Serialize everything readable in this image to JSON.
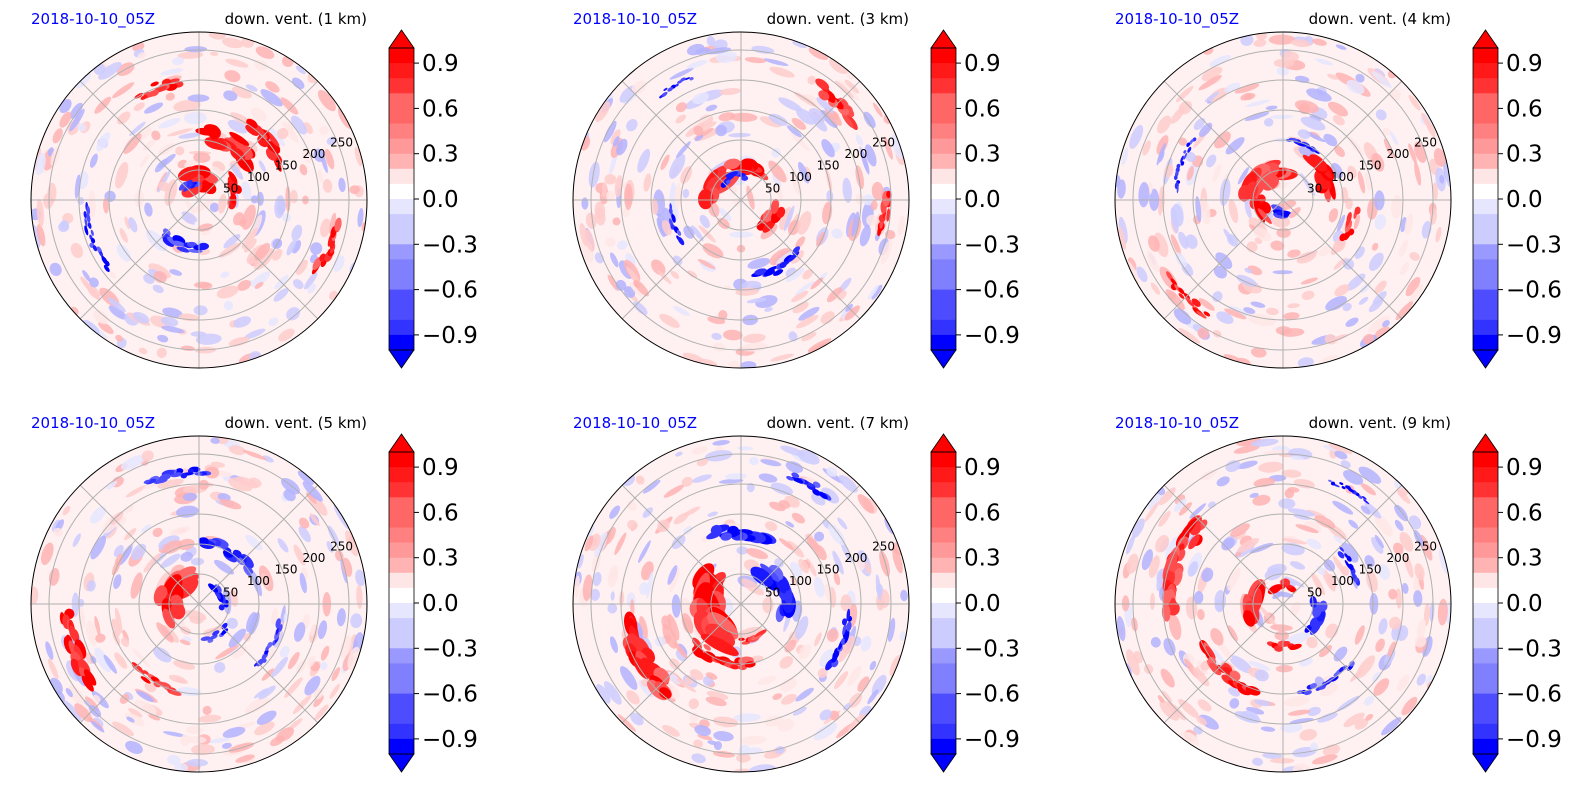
{
  "figure": {
    "colors": {
      "positive": "#ff0000",
      "negative": "#0000ff",
      "date_label": "#0000ff",
      "grid": "#b0b0b0"
    }
  },
  "chart_data": [
    {
      "type": "heatmap",
      "projection": "polar",
      "date": "2018-10-10_05Z",
      "title": "down. vent. (1 km)",
      "radial_ticks": [
        50,
        100,
        150,
        200,
        250
      ],
      "colorbar": {
        "min": -1.0,
        "max": 1.0,
        "ticks": [
          "0.9",
          "0.6",
          "0.3",
          "0.0",
          "−0.3",
          "−0.6",
          "−0.9"
        ],
        "extend": "both"
      },
      "features": [
        {
          "sign": 1,
          "angle": 90,
          "r": 35,
          "len": 40,
          "width": 22
        },
        {
          "sign": 1,
          "angle": 60,
          "r": 110,
          "len": 90,
          "width": 20
        },
        {
          "sign": 1,
          "angle": 40,
          "r": 150,
          "len": 80,
          "width": 16
        },
        {
          "sign": 1,
          "angle": 110,
          "r": 200,
          "len": 70,
          "width": 12
        },
        {
          "sign": 1,
          "angle": -20,
          "r": 230,
          "len": 80,
          "width": 12
        },
        {
          "sign": 1,
          "angle": 15,
          "r": 60,
          "len": 40,
          "width": 14
        },
        {
          "sign": -1,
          "angle": 250,
          "r": 80,
          "len": 70,
          "width": 12
        },
        {
          "sign": -1,
          "angle": 200,
          "r": 190,
          "len": 110,
          "width": 8
        },
        {
          "sign": -1,
          "angle": 120,
          "r": 30,
          "len": 20,
          "width": 10
        }
      ]
    },
    {
      "type": "heatmap",
      "projection": "polar",
      "date": "2018-10-10_05Z",
      "title": "down. vent. (3 km)",
      "radial_ticks": [
        50,
        100,
        150,
        200,
        250
      ],
      "colorbar": {
        "min": -1.0,
        "max": 1.0,
        "ticks": [
          "0.9",
          "0.6",
          "0.3",
          "0.0",
          "−0.3",
          "−0.6",
          "−0.9"
        ],
        "extend": "both"
      },
      "features": [
        {
          "sign": 1,
          "angle": 150,
          "r": 50,
          "len": 50,
          "width": 24
        },
        {
          "sign": 1,
          "angle": 80,
          "r": 60,
          "len": 50,
          "width": 20
        },
        {
          "sign": 1,
          "angle": -30,
          "r": 60,
          "len": 40,
          "width": 16
        },
        {
          "sign": 1,
          "angle": 45,
          "r": 230,
          "len": 80,
          "width": 14
        },
        {
          "sign": 1,
          "angle": -5,
          "r": 240,
          "len": 60,
          "width": 12
        },
        {
          "sign": -1,
          "angle": 110,
          "r": 40,
          "len": 40,
          "width": 10
        },
        {
          "sign": -1,
          "angle": -60,
          "r": 130,
          "len": 80,
          "width": 10
        },
        {
          "sign": -1,
          "angle": 200,
          "r": 120,
          "len": 60,
          "width": 8
        },
        {
          "sign": -1,
          "angle": 120,
          "r": 220,
          "len": 60,
          "width": 6
        }
      ]
    },
    {
      "type": "heatmap",
      "projection": "polar",
      "date": "2018-10-10_05Z",
      "title": "down. vent. (4 km)",
      "radial_ticks": [
        30,
        100,
        150,
        200,
        250
      ],
      "colorbar": {
        "min": -1.0,
        "max": 1.0,
        "ticks": [
          "0.9",
          "0.6",
          "0.3",
          "0.0",
          "−0.3",
          "−0.6",
          "−0.9"
        ],
        "extend": "both"
      },
      "features": [
        {
          "sign": 1,
          "angle": 130,
          "r": 50,
          "len": 70,
          "width": 26
        },
        {
          "sign": 1,
          "angle": 30,
          "r": 80,
          "len": 60,
          "width": 20
        },
        {
          "sign": 1,
          "angle": 200,
          "r": 40,
          "len": 30,
          "width": 16
        },
        {
          "sign": 1,
          "angle": 225,
          "r": 230,
          "len": 90,
          "width": 10
        },
        {
          "sign": 1,
          "angle": -20,
          "r": 120,
          "len": 50,
          "width": 10
        },
        {
          "sign": -1,
          "angle": 260,
          "r": 20,
          "len": 20,
          "width": 12
        },
        {
          "sign": -1,
          "angle": 70,
          "r": 100,
          "len": 50,
          "width": 8
        },
        {
          "sign": -1,
          "angle": 160,
          "r": 180,
          "len": 90,
          "width": 6
        }
      ]
    },
    {
      "type": "heatmap",
      "projection": "polar",
      "date": "2018-10-10_05Z",
      "title": "down. vent. (5 km)",
      "radial_ticks": [
        50,
        100,
        150,
        200,
        250
      ],
      "colorbar": {
        "min": -1.0,
        "max": 1.0,
        "ticks": [
          "0.9",
          "0.6",
          "0.3",
          "0.0",
          "−0.3",
          "−0.6",
          "−0.9"
        ],
        "extend": "both"
      },
      "features": [
        {
          "sign": 1,
          "angle": 160,
          "r": 50,
          "len": 80,
          "width": 26
        },
        {
          "sign": 1,
          "angle": 200,
          "r": 220,
          "len": 120,
          "width": 16
        },
        {
          "sign": 1,
          "angle": 240,
          "r": 150,
          "len": 80,
          "width": 10
        },
        {
          "sign": -1,
          "angle": 60,
          "r": 100,
          "len": 90,
          "width": 14
        },
        {
          "sign": -1,
          "angle": 20,
          "r": 40,
          "len": 40,
          "width": 10
        },
        {
          "sign": -1,
          "angle": 100,
          "r": 220,
          "len": 100,
          "width": 10
        },
        {
          "sign": -1,
          "angle": -30,
          "r": 140,
          "len": 80,
          "width": 8
        },
        {
          "sign": -1,
          "angle": -60,
          "r": 60,
          "len": 40,
          "width": 8
        }
      ]
    },
    {
      "type": "heatmap",
      "projection": "polar",
      "date": "2018-10-10_05Z",
      "title": "down. vent. (7 km)",
      "radial_ticks": [
        50,
        100,
        150,
        200,
        250
      ],
      "colorbar": {
        "min": -1.0,
        "max": 1.0,
        "ticks": [
          "0.9",
          "0.6",
          "0.3",
          "0.0",
          "−0.3",
          "−0.6",
          "−0.9"
        ],
        "extend": "both"
      },
      "features": [
        {
          "sign": 1,
          "angle": 190,
          "r": 60,
          "len": 110,
          "width": 34
        },
        {
          "sign": 1,
          "angle": 210,
          "r": 190,
          "len": 130,
          "width": 22
        },
        {
          "sign": 1,
          "angle": 250,
          "r": 100,
          "len": 100,
          "width": 14
        },
        {
          "sign": 1,
          "angle": -70,
          "r": 60,
          "len": 40,
          "width": 10
        },
        {
          "sign": -1,
          "angle": 90,
          "r": 120,
          "len": 90,
          "width": 18
        },
        {
          "sign": -1,
          "angle": 20,
          "r": 70,
          "len": 80,
          "width": 22
        },
        {
          "sign": -1,
          "angle": -20,
          "r": 180,
          "len": 90,
          "width": 10
        },
        {
          "sign": -1,
          "angle": 60,
          "r": 230,
          "len": 70,
          "width": 10
        }
      ]
    },
    {
      "type": "heatmap",
      "projection": "polar",
      "date": "2018-10-10_05Z",
      "title": "down. vent. (9 km)",
      "radial_ticks": [
        50,
        100,
        150,
        200,
        250
      ],
      "colorbar": {
        "min": -1.0,
        "max": 1.0,
        "ticks": [
          "0.9",
          "0.6",
          "0.3",
          "0.0",
          "−0.3",
          "−0.6",
          "−0.9"
        ],
        "extend": "both"
      },
      "features": [
        {
          "sign": 1,
          "angle": 180,
          "r": 50,
          "len": 40,
          "width": 24
        },
        {
          "sign": 1,
          "angle": 90,
          "r": 30,
          "len": 30,
          "width": 12
        },
        {
          "sign": 1,
          "angle": 160,
          "r": 190,
          "len": 160,
          "width": 20
        },
        {
          "sign": 1,
          "angle": 230,
          "r": 150,
          "len": 110,
          "width": 14
        },
        {
          "sign": 1,
          "angle": 270,
          "r": 70,
          "len": 40,
          "width": 10
        },
        {
          "sign": -1,
          "angle": -20,
          "r": 60,
          "len": 50,
          "width": 16
        },
        {
          "sign": -1,
          "angle": 30,
          "r": 130,
          "len": 60,
          "width": 8
        },
        {
          "sign": -1,
          "angle": -60,
          "r": 150,
          "len": 100,
          "width": 8
        },
        {
          "sign": -1,
          "angle": 60,
          "r": 220,
          "len": 70,
          "width": 6
        }
      ]
    }
  ]
}
